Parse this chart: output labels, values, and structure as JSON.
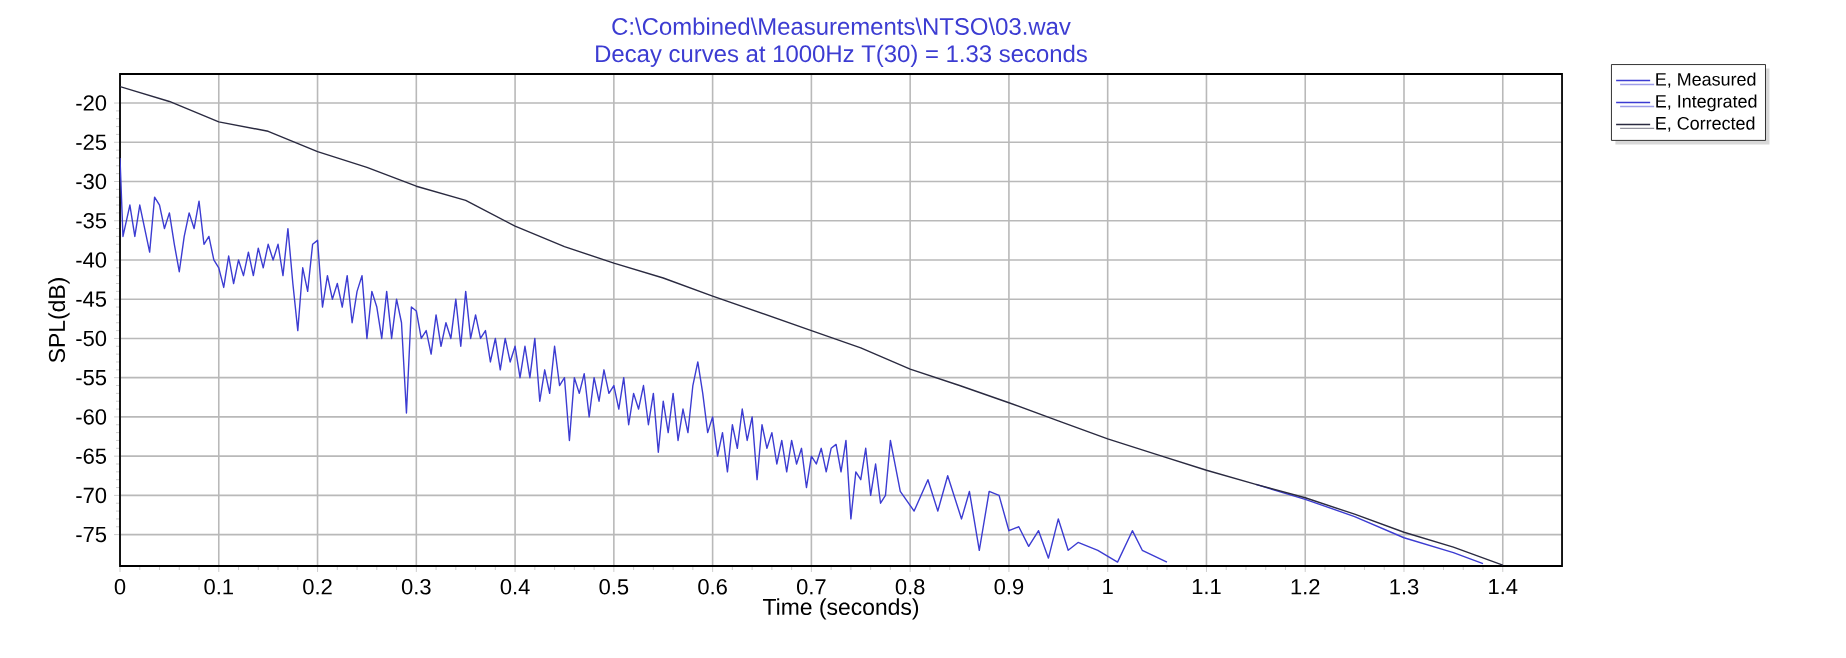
{
  "chart_data": {
    "type": "line",
    "title": "C:\\Combined\\Measurements\\NTSO\\03.wav",
    "subtitle": "Decay curves at 1000Hz T(30) = 1.33 seconds",
    "xlabel": "Time (seconds)",
    "ylabel": "SPL(dB)",
    "xlim": [
      0,
      1.46
    ],
    "ylim": [
      -79,
      -16.3
    ],
    "xticks": [
      0,
      0.1,
      0.2,
      0.3,
      0.4,
      0.5,
      0.6,
      0.7,
      0.8,
      0.9,
      1,
      1.1,
      1.2,
      1.3,
      1.4
    ],
    "yticks": [
      -20,
      -25,
      -30,
      -35,
      -40,
      -45,
      -50,
      -55,
      -60,
      -65,
      -70,
      -75
    ],
    "grid": true,
    "legend": "top right",
    "marker": "none",
    "line_style": "solid",
    "series": [
      {
        "name": "E, Measured",
        "color": "#3c3cd2",
        "x": [
          0,
          0.003,
          0.01,
          0.015,
          0.02,
          0.025,
          0.03,
          0.035,
          0.04,
          0.045,
          0.05,
          0.055,
          0.06,
          0.065,
          0.07,
          0.075,
          0.08,
          0.085,
          0.09,
          0.095,
          0.1,
          0.105,
          0.11,
          0.115,
          0.12,
          0.125,
          0.13,
          0.135,
          0.14,
          0.145,
          0.15,
          0.155,
          0.16,
          0.165,
          0.17,
          0.175,
          0.18,
          0.185,
          0.19,
          0.195,
          0.2,
          0.205,
          0.21,
          0.215,
          0.22,
          0.225,
          0.23,
          0.235,
          0.24,
          0.245,
          0.25,
          0.255,
          0.26,
          0.265,
          0.27,
          0.275,
          0.28,
          0.285,
          0.29,
          0.295,
          0.3,
          0.305,
          0.31,
          0.315,
          0.32,
          0.325,
          0.33,
          0.335,
          0.34,
          0.345,
          0.35,
          0.355,
          0.36,
          0.365,
          0.37,
          0.375,
          0.38,
          0.385,
          0.39,
          0.395,
          0.4,
          0.405,
          0.41,
          0.415,
          0.42,
          0.425,
          0.43,
          0.435,
          0.44,
          0.445,
          0.45,
          0.455,
          0.46,
          0.465,
          0.47,
          0.475,
          0.48,
          0.485,
          0.49,
          0.495,
          0.5,
          0.505,
          0.51,
          0.515,
          0.52,
          0.525,
          0.53,
          0.535,
          0.54,
          0.545,
          0.55,
          0.555,
          0.56,
          0.565,
          0.57,
          0.575,
          0.58,
          0.585,
          0.59,
          0.595,
          0.6,
          0.605,
          0.61,
          0.615,
          0.62,
          0.625,
          0.63,
          0.635,
          0.64,
          0.645,
          0.65,
          0.655,
          0.66,
          0.665,
          0.67,
          0.675,
          0.68,
          0.685,
          0.69,
          0.695,
          0.7,
          0.705,
          0.71,
          0.715,
          0.72,
          0.725,
          0.73,
          0.735,
          0.74,
          0.745,
          0.75,
          0.755,
          0.76,
          0.765,
          0.77,
          0.775,
          0.78,
          0.79,
          0.804,
          0.818,
          0.828,
          0.838,
          0.842,
          0.852,
          0.86,
          0.87,
          0.88,
          0.89,
          0.9,
          0.91,
          0.92,
          0.93,
          0.94,
          0.95,
          0.96,
          0.97,
          0.98,
          0.99,
          1.0,
          1.01,
          1.02,
          1.025,
          1.03,
          1.035,
          1.04,
          1.06
        ],
        "values": [
          -27,
          -37,
          -33,
          -37,
          -33,
          -36,
          -39,
          -32,
          -33,
          -36,
          -34,
          -38,
          -41.5,
          -37,
          -34,
          -36,
          -32.5,
          -38,
          -37,
          -40,
          -41,
          -43.5,
          -39.5,
          -43,
          -40,
          -42,
          -39,
          -42,
          -38.5,
          -41,
          -38,
          -40,
          -38,
          -42,
          -36,
          -43,
          -49,
          -41,
          -44,
          -38,
          -37.5,
          -46,
          -42,
          -45,
          -43,
          -46,
          -42,
          -48,
          -44,
          -42,
          -50,
          -44,
          -46,
          -50,
          -44,
          -50,
          -45,
          -48,
          -59.5,
          -46,
          -46.5,
          -50,
          -49,
          -52,
          -47,
          -51,
          -48,
          -50,
          -45,
          -51,
          -44,
          -50,
          -47,
          -50,
          -49,
          -53,
          -50,
          -54,
          -50,
          -53,
          -51,
          -55,
          -51,
          -55,
          -50,
          -58,
          -54,
          -57,
          -51,
          -56,
          -55,
          -63,
          -55,
          -57,
          -54.5,
          -60,
          -55,
          -58,
          -54,
          -57,
          -56,
          -59,
          -55,
          -61,
          -57,
          -59,
          -56,
          -61,
          -57,
          -64.5,
          -58,
          -62,
          -57,
          -63,
          -59,
          -62,
          -56,
          -53,
          -57,
          -62,
          -60,
          -65,
          -62,
          -67,
          -61,
          -64,
          -59,
          -63,
          -60,
          -68,
          -61,
          -64,
          -62,
          -66,
          -63,
          -67,
          -63,
          -66,
          -64,
          -69,
          -65,
          -66,
          -64,
          -67,
          -64,
          -63.5,
          -67,
          -63,
          -73,
          -67,
          -68,
          -64,
          -70,
          -66,
          -71,
          -70,
          -63,
          -69.5,
          -72,
          -68,
          -72,
          -67.5,
          null,
          -73,
          -69.5,
          -77,
          -69.5,
          -70,
          -74.5,
          -74,
          -76.5,
          -74.5,
          -78,
          -73,
          -77,
          -76,
          null,
          -77,
          null,
          -78.5,
          null,
          -74.5,
          null,
          -77,
          null,
          -78.5
        ]
      },
      {
        "name": "E, Integrated",
        "color": "#3c3cd2",
        "x": [
          1.15,
          1.2,
          1.25,
          1.3,
          1.35,
          1.38
        ],
        "values": [
          -68.6,
          -70.5,
          -72.7,
          -75.4,
          -77.3,
          -78.7
        ]
      },
      {
        "name": "E, Corrected",
        "color": "#2a2a40",
        "x": [
          0,
          0.05,
          0.1,
          0.15,
          0.2,
          0.25,
          0.3,
          0.35,
          0.4,
          0.45,
          0.5,
          0.55,
          0.6,
          0.65,
          0.7,
          0.75,
          0.8,
          0.85,
          0.9,
          0.95,
          1.0,
          1.05,
          1.1,
          1.15,
          1.2,
          1.25,
          1.3,
          1.35,
          1.4
        ],
        "values": [
          -17.9,
          -19.8,
          -22.4,
          -23.6,
          -26.2,
          -28.2,
          -30.6,
          -32.4,
          -35.7,
          -38.3,
          -40.4,
          -42.3,
          -44.6,
          -46.8,
          -49,
          -51.2,
          -53.9,
          -56,
          -58.2,
          -60.5,
          -62.8,
          -64.8,
          -66.8,
          -68.6,
          -70.3,
          -72.4,
          -74.7,
          -76.6,
          -78.9
        ]
      }
    ]
  }
}
